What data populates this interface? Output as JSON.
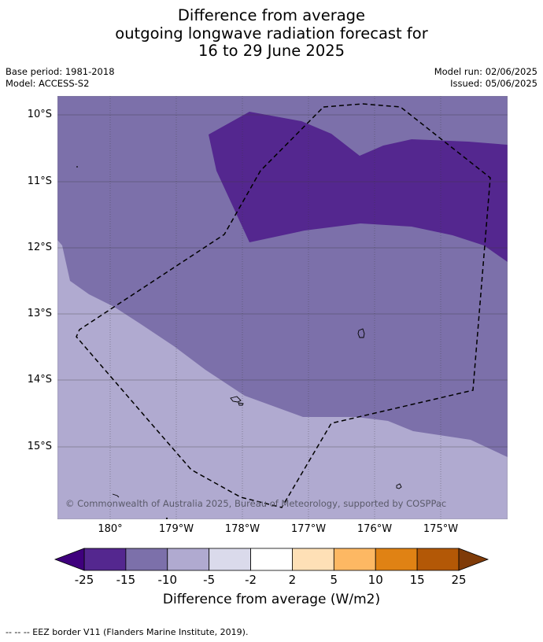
{
  "title": {
    "line1": "Difference from average",
    "line2": "outgoing longwave radiation forecast for",
    "line3": "16 to 29 June 2025"
  },
  "meta": {
    "base_period": "Base period: 1981-2018",
    "model": "Model: ACCESS-S2",
    "model_run": "Model run: 02/06/2025",
    "issued": "Issued: 05/06/2025"
  },
  "map": {
    "lat_labels": [
      "10°S",
      "11°S",
      "12°S",
      "13°S",
      "14°S",
      "15°S"
    ],
    "lon_labels": [
      "180°",
      "179°W",
      "178°W",
      "177°W",
      "176°W",
      "175°W"
    ],
    "credit": "© Commonwealth of Australia 2025, Bureau of Meteorology, supported by COSPPac",
    "colors": {
      "level_-25_-15": "#54278f",
      "level_-15_-10": "#7c70aa",
      "level_-10_-5": "#b0aad0",
      "border": "#000000"
    }
  },
  "colorbar": {
    "title": "Difference from average (W/m2)",
    "ticks": [
      "-25",
      "-15",
      "-10",
      "-5",
      "-2",
      "2",
      "5",
      "10",
      "15",
      "25"
    ],
    "colors": [
      "#3f007d",
      "#54278f",
      "#7c70aa",
      "#b0aad0",
      "#dadaeb",
      "#ffffff",
      "#fee0b6",
      "#fdb863",
      "#e08214",
      "#b35806",
      "#7f3b08"
    ]
  },
  "footer": "--  --  -- EEZ border V11 (Flanders Marine Institute, 2019)."
}
